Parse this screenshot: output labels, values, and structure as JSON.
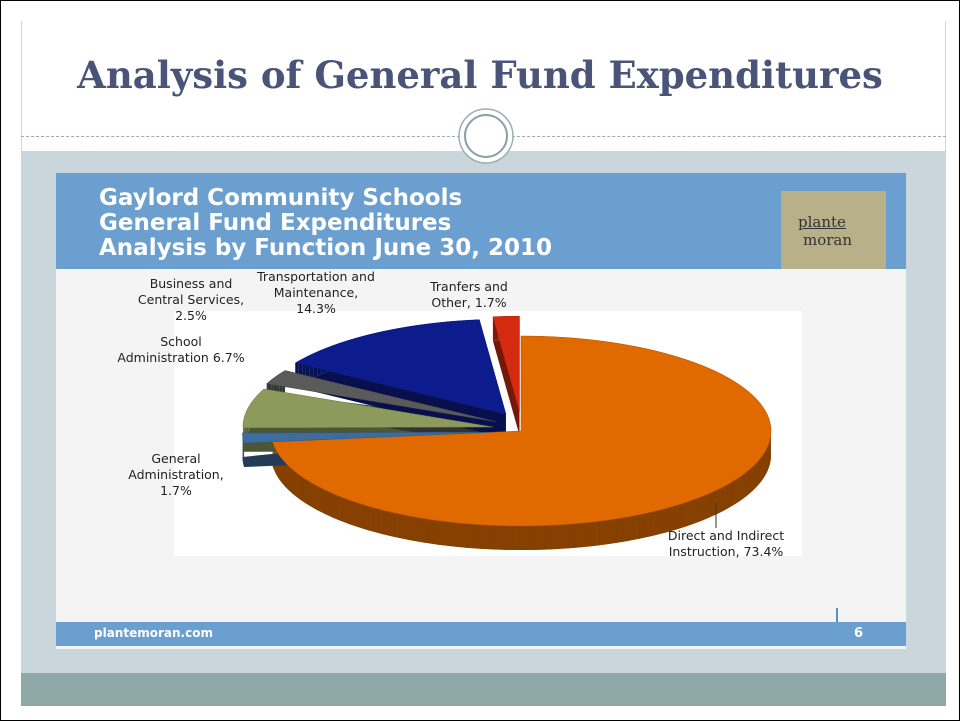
{
  "slide_title": "Analysis of General Fund Expenditures",
  "branding": {
    "logo_top": "plante",
    "logo_bottom": "moran",
    "footer_url": "plantemoran.com",
    "page_number": "6"
  },
  "chart_data": {
    "type": "pie",
    "title_lines": [
      "Gaylord Community Schools",
      "General Fund Expenditures",
      "Analysis by Function June 30, 2010"
    ],
    "categories": [
      "Direct and Indirect Instruction,",
      "General Administration,",
      "School Administration",
      "Business and Central Services,",
      "Transportation and Maintenance,",
      "Tranfers and Other,"
    ],
    "values": [
      73.4,
      1.7,
      6.7,
      2.5,
      14.3,
      1.7
    ],
    "value_labels": [
      "73.4%",
      "1.7%",
      "6.7%",
      "2.5%",
      "14.3%",
      "1.7%"
    ],
    "colors": [
      "#e06a00",
      "#3d6d9e",
      "#8c9a5c",
      "#5a5a5a",
      "#0d1c8c",
      "#d42a10"
    ]
  }
}
